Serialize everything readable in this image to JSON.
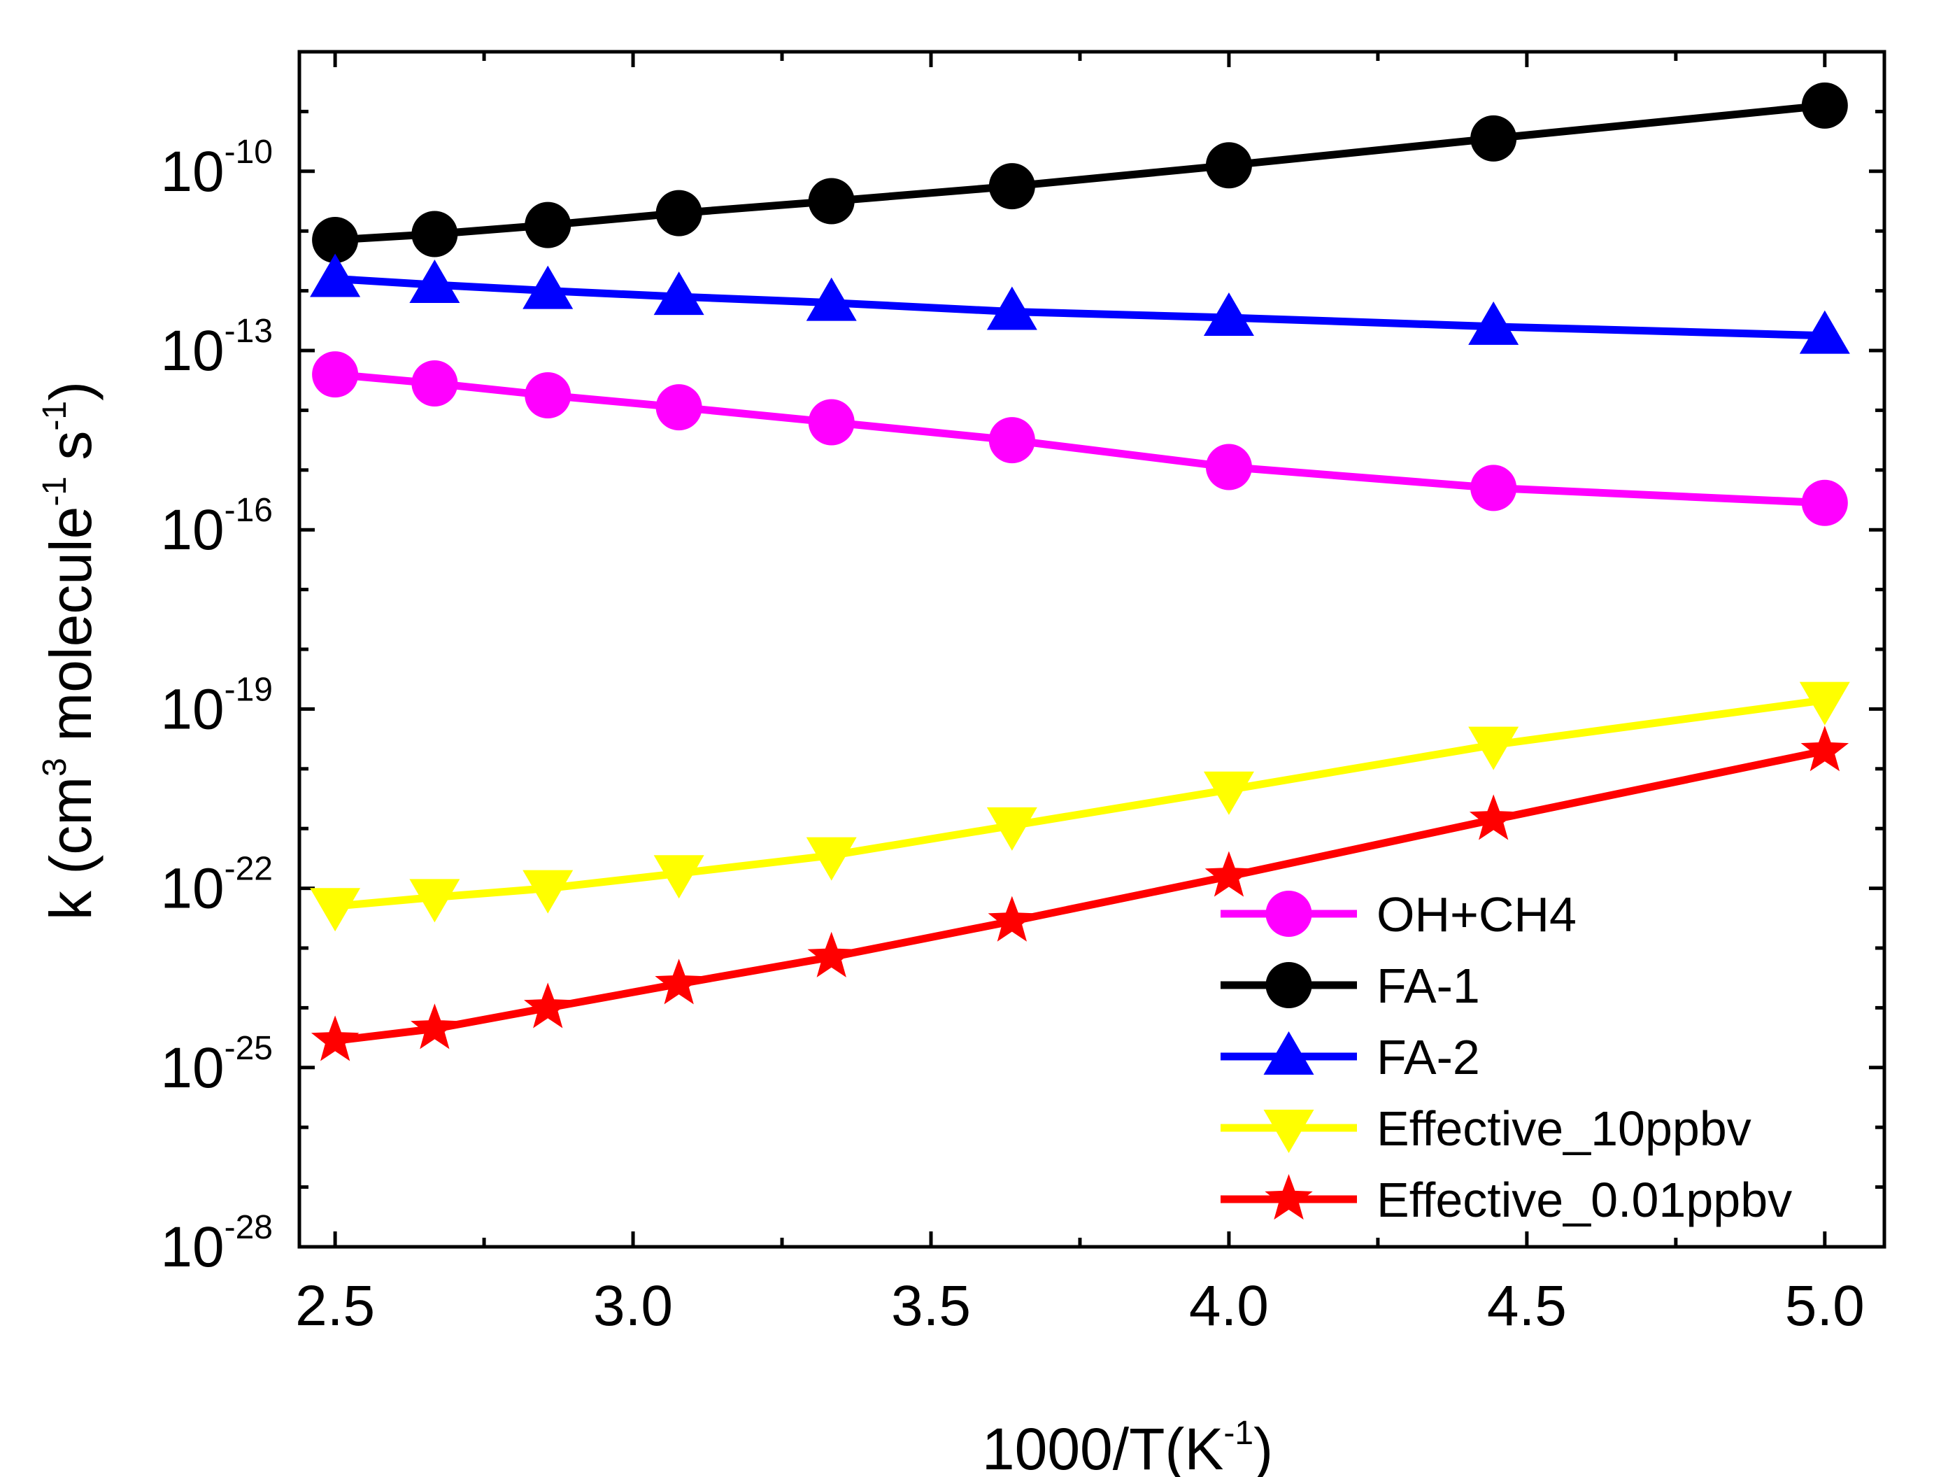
{
  "chart_data": {
    "type": "line",
    "title": "",
    "xlabel": {
      "base": "1000/T(K",
      "sup": "-1",
      "close": ")"
    },
    "ylabel": {
      "p1": "k (cm",
      "sup1": "3",
      "p2": " molecule",
      "sup2": "-1",
      "p3": " s",
      "sup3": "-1",
      "p4": ")"
    },
    "xlim": [
      2.44,
      5.1
    ],
    "ylim_log10": [
      -28,
      -8
    ],
    "x_ticks": [
      {
        "value": 2.5,
        "label": "2.5"
      },
      {
        "value": 3.0,
        "label": "3.0"
      },
      {
        "value": 3.5,
        "label": "3.5"
      },
      {
        "value": 4.0,
        "label": "4.0"
      },
      {
        "value": 4.5,
        "label": "4.5"
      },
      {
        "value": 5.0,
        "label": "5.0"
      }
    ],
    "y_ticks": [
      {
        "value": -10,
        "base": "10",
        "exp": "-10"
      },
      {
        "value": -13,
        "base": "10",
        "exp": "-13"
      },
      {
        "value": -16,
        "base": "10",
        "exp": "-16"
      },
      {
        "value": -19,
        "base": "10",
        "exp": "-19"
      },
      {
        "value": -22,
        "base": "10",
        "exp": "-22"
      },
      {
        "value": -25,
        "base": "10",
        "exp": "-25"
      },
      {
        "value": -28,
        "base": "10",
        "exp": "-28"
      }
    ],
    "legend_position": "bottom-right",
    "x": [
      2.5,
      2.667,
      2.857,
      3.077,
      3.333,
      3.636,
      4.0,
      4.444,
      5.0
    ],
    "series": [
      {
        "name": "OH+CH4",
        "color": "#ff00ff",
        "marker": "circle",
        "log10_values": [
          -13.4,
          -13.55,
          -13.75,
          -13.95,
          -14.2,
          -14.5,
          -14.95,
          -15.3,
          -15.55
        ]
      },
      {
        "name": "FA-1",
        "color": "#000000",
        "marker": "circle",
        "log10_values": [
          -11.15,
          -11.05,
          -10.9,
          -10.7,
          -10.5,
          -10.25,
          -9.9,
          -9.45,
          -8.9
        ]
      },
      {
        "name": "FA-2",
        "color": "#0000ff",
        "marker": "triangle-up",
        "log10_values": [
          -11.8,
          -11.9,
          -12.0,
          -12.1,
          -12.2,
          -12.35,
          -12.45,
          -12.6,
          -12.75
        ]
      },
      {
        "name": "Effective_10ppbv",
        "color": "#ffff00",
        "marker": "triangle-down",
        "log10_values": [
          -22.3,
          -22.15,
          -22.0,
          -21.75,
          -21.45,
          -20.95,
          -20.35,
          -19.6,
          -18.85
        ]
      },
      {
        "name": "Effective_0.01ppbv",
        "color": "#ff0000",
        "marker": "star",
        "log10_values": [
          -24.55,
          -24.35,
          -24.0,
          -23.6,
          -23.15,
          -22.55,
          -21.8,
          -20.85,
          -19.7
        ]
      }
    ]
  }
}
